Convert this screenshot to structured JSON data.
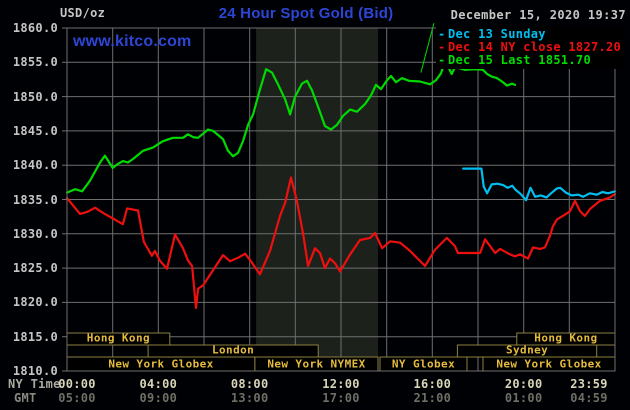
{
  "header": {
    "units_label": "USD/oz",
    "title": "24 Hour Spot Gold (Bid)",
    "datetime": "December 15, 2020 19:37",
    "watermark": "www.kitco.com"
  },
  "palette": {
    "background": "#000104",
    "plot_background": "#000000",
    "shaded_band": "#1c211b",
    "grid": "#6f6f6f",
    "title_blue": "#2d46d6",
    "axis_text": "#c6c6c6",
    "x_label_bright": "#d9d5b8",
    "x_label_dim": "#6f6f66",
    "axis_name_text": "#a9a9a1",
    "session_border": "#8c8040",
    "session_text": "#e5bb3e",
    "series_dec13": "#00bff0",
    "series_dec14": "#ee0f0f",
    "series_dec15": "#00da00"
  },
  "legend": [
    {
      "label": "Dec 13 Sunday",
      "color": "#00bff0"
    },
    {
      "label": "Dec 14 NY close 1827.20",
      "color": "#ee0f0f"
    },
    {
      "label": "Dec 15 Last 1851.70",
      "color": "#00da00"
    }
  ],
  "axes": {
    "x_axis_label_ny": "NY Time",
    "x_axis_label_gmt": "GMT"
  },
  "chart_data": {
    "type": "line",
    "title": "24 Hour Spot Gold (Bid)",
    "y_axis": {
      "label": "USD/oz",
      "min": 1810,
      "max": 1860,
      "tick_step": 5,
      "tick_labels": [
        "1860.0",
        "1855.0",
        "1850.0",
        "1845.0",
        "1840.0",
        "1835.0",
        "1830.0",
        "1825.0",
        "1820.0",
        "1815.0",
        "1810.0"
      ]
    },
    "x_axis": {
      "range_hours": [
        0,
        24
      ],
      "gridline_every_hours": 2,
      "tick_hours": [
        0,
        4,
        8,
        12,
        16,
        20,
        24
      ],
      "tick_labels_ny": [
        "00:00",
        "04:00",
        "08:00",
        "12:00",
        "16:00",
        "20:00",
        "23:59"
      ],
      "tick_labels_gmt": [
        "05:00",
        "09:00",
        "13:00",
        "17:00",
        "21:00",
        "01:00",
        "04:59"
      ]
    },
    "shaded_band_hours": [
      8.28,
      13.62
    ],
    "series": [
      {
        "name": "Dec 13 Sunday",
        "color": "#00bff0",
        "points": [
          [
            17.35,
            1839.5
          ],
          [
            18.15,
            1839.5
          ],
          [
            18.25,
            1836.9
          ],
          [
            18.4,
            1835.9
          ],
          [
            18.6,
            1837.2
          ],
          [
            18.85,
            1837.3
          ],
          [
            19.1,
            1837.1
          ],
          [
            19.3,
            1836.7
          ],
          [
            19.5,
            1837.0
          ],
          [
            19.65,
            1836.4
          ],
          [
            19.9,
            1835.7
          ],
          [
            20.1,
            1834.9
          ],
          [
            20.3,
            1836.7
          ],
          [
            20.5,
            1835.4
          ],
          [
            20.75,
            1835.6
          ],
          [
            21.0,
            1835.3
          ],
          [
            21.2,
            1835.9
          ],
          [
            21.45,
            1836.6
          ],
          [
            21.6,
            1836.7
          ],
          [
            21.85,
            1836.0
          ],
          [
            22.1,
            1835.6
          ],
          [
            22.4,
            1835.7
          ],
          [
            22.6,
            1835.4
          ],
          [
            22.9,
            1835.9
          ],
          [
            23.2,
            1835.7
          ],
          [
            23.45,
            1836.1
          ],
          [
            23.7,
            1835.9
          ],
          [
            24,
            1836.2
          ]
        ]
      },
      {
        "name": "Dec 14 NY close 1827.20",
        "color": "#ee0f0f",
        "points": [
          [
            0,
            1835.2
          ],
          [
            0.57,
            1832.9
          ],
          [
            0.9,
            1833.2
          ],
          [
            1.23,
            1833.8
          ],
          [
            1.6,
            1833.0
          ],
          [
            1.97,
            1832.3
          ],
          [
            2.45,
            1831.4
          ],
          [
            2.63,
            1833.7
          ],
          [
            3.11,
            1833.4
          ],
          [
            3.37,
            1828.8
          ],
          [
            3.72,
            1826.8
          ],
          [
            3.85,
            1827.5
          ],
          [
            4.07,
            1826.1
          ],
          [
            4.38,
            1824.9
          ],
          [
            4.73,
            1829.9
          ],
          [
            5.08,
            1827.9
          ],
          [
            5.3,
            1826.1
          ],
          [
            5.48,
            1825.3
          ],
          [
            5.65,
            1819.2
          ],
          [
            5.74,
            1822.0
          ],
          [
            5.96,
            1822.5
          ],
          [
            6.26,
            1824.0
          ],
          [
            6.83,
            1826.9
          ],
          [
            7.14,
            1826.0
          ],
          [
            7.49,
            1826.5
          ],
          [
            7.8,
            1827.1
          ],
          [
            8.1,
            1825.8
          ],
          [
            8.45,
            1824.1
          ],
          [
            8.89,
            1827.5
          ],
          [
            9.33,
            1832.6
          ],
          [
            9.55,
            1834.5
          ],
          [
            9.81,
            1838.2
          ],
          [
            10.07,
            1834.8
          ],
          [
            10.34,
            1830.0
          ],
          [
            10.56,
            1825.3
          ],
          [
            10.86,
            1827.9
          ],
          [
            11.08,
            1827.2
          ],
          [
            11.3,
            1825.0
          ],
          [
            11.52,
            1826.4
          ],
          [
            11.74,
            1825.7
          ],
          [
            11.96,
            1824.5
          ],
          [
            12.4,
            1827.0
          ],
          [
            12.83,
            1829.1
          ],
          [
            13.27,
            1829.4
          ],
          [
            13.49,
            1830.1
          ],
          [
            13.8,
            1827.9
          ],
          [
            14.15,
            1828.9
          ],
          [
            14.59,
            1828.7
          ],
          [
            15.02,
            1827.5
          ],
          [
            15.68,
            1825.3
          ],
          [
            16.12,
            1827.7
          ],
          [
            16.64,
            1829.4
          ],
          [
            16.99,
            1828.2
          ],
          [
            17.12,
            1827.2
          ],
          [
            18.09,
            1827.2
          ],
          [
            18.31,
            1829.2
          ],
          [
            18.75,
            1827.2
          ],
          [
            18.97,
            1827.8
          ],
          [
            19.4,
            1827.0
          ],
          [
            19.62,
            1826.7
          ],
          [
            19.84,
            1827.0
          ],
          [
            20.19,
            1826.4
          ],
          [
            20.41,
            1828.0
          ],
          [
            20.72,
            1827.8
          ],
          [
            20.93,
            1828.0
          ],
          [
            21.15,
            1829.7
          ],
          [
            21.28,
            1831.1
          ],
          [
            21.46,
            1832.1
          ],
          [
            21.81,
            1832.8
          ],
          [
            22.03,
            1833.3
          ],
          [
            22.25,
            1834.8
          ],
          [
            22.47,
            1833.3
          ],
          [
            22.68,
            1832.6
          ],
          [
            22.9,
            1833.6
          ],
          [
            23.34,
            1834.8
          ],
          [
            23.78,
            1835.3
          ],
          [
            24,
            1835.8
          ]
        ]
      },
      {
        "name": "Dec 15 Last 1851.70",
        "color": "#00da00",
        "points": [
          [
            0,
            1836.0
          ],
          [
            0.35,
            1836.5
          ],
          [
            0.66,
            1836.2
          ],
          [
            1.0,
            1837.7
          ],
          [
            1.45,
            1840.4
          ],
          [
            1.66,
            1841.4
          ],
          [
            2.0,
            1839.6
          ],
          [
            2.24,
            1840.2
          ],
          [
            2.45,
            1840.6
          ],
          [
            2.67,
            1840.4
          ],
          [
            2.89,
            1840.9
          ],
          [
            3.33,
            1842.1
          ],
          [
            3.77,
            1842.6
          ],
          [
            4.2,
            1843.5
          ],
          [
            4.64,
            1844.0
          ],
          [
            5.08,
            1844.0
          ],
          [
            5.3,
            1844.5
          ],
          [
            5.52,
            1844.1
          ],
          [
            5.74,
            1844.0
          ],
          [
            6.18,
            1845.2
          ],
          [
            6.4,
            1845.0
          ],
          [
            6.83,
            1843.8
          ],
          [
            7.05,
            1842.1
          ],
          [
            7.27,
            1841.3
          ],
          [
            7.49,
            1841.8
          ],
          [
            7.71,
            1843.5
          ],
          [
            7.93,
            1845.9
          ],
          [
            8.15,
            1847.4
          ],
          [
            8.45,
            1851.0
          ],
          [
            8.72,
            1854.0
          ],
          [
            8.98,
            1853.5
          ],
          [
            9.24,
            1851.8
          ],
          [
            9.55,
            1849.6
          ],
          [
            9.77,
            1847.4
          ],
          [
            9.99,
            1850.0
          ],
          [
            10.29,
            1851.9
          ],
          [
            10.51,
            1852.3
          ],
          [
            10.73,
            1850.9
          ],
          [
            10.99,
            1848.6
          ],
          [
            11.3,
            1845.7
          ],
          [
            11.56,
            1845.2
          ],
          [
            11.83,
            1845.9
          ],
          [
            12.09,
            1847.2
          ],
          [
            12.4,
            1848.1
          ],
          [
            12.7,
            1847.8
          ],
          [
            13.05,
            1848.9
          ],
          [
            13.32,
            1850.2
          ],
          [
            13.53,
            1851.7
          ],
          [
            13.75,
            1851.1
          ],
          [
            14.02,
            1852.4
          ],
          [
            14.19,
            1853.0
          ],
          [
            14.41,
            1852.1
          ],
          [
            14.67,
            1852.7
          ],
          [
            14.98,
            1852.3
          ],
          [
            15.46,
            1852.2
          ],
          [
            15.9,
            1851.8
          ],
          [
            16.16,
            1852.4
          ],
          [
            16.38,
            1853.4
          ],
          [
            16.56,
            1855.1
          ],
          [
            16.73,
            1854.1
          ],
          [
            16.85,
            1853.3
          ],
          [
            16.99,
            1854.3
          ],
          [
            17.43,
            1853.9
          ],
          [
            17.87,
            1854.0
          ],
          [
            18.22,
            1853.9
          ],
          [
            18.4,
            1853.3
          ],
          [
            18.61,
            1852.9
          ],
          [
            18.83,
            1852.7
          ],
          [
            19.05,
            1852.2
          ],
          [
            19.27,
            1851.6
          ],
          [
            19.49,
            1851.9
          ],
          [
            19.62,
            1851.7
          ]
        ]
      }
    ],
    "artifact_spike": {
      "color": "#00da00",
      "points": [
        [
          15.5,
          1853.5
        ],
        [
          16.07,
          1860.7
        ]
      ]
    },
    "sessions": [
      {
        "row": 1,
        "label": "Hong Kong",
        "start_h": 0,
        "end_h": 4.5
      },
      {
        "row": 1,
        "label": "Hong Kong",
        "start_h": 19.7,
        "end_h": 24
      },
      {
        "row": 2,
        "label": "London",
        "start_h": 3.55,
        "end_h": 11.0
      },
      {
        "row": 2,
        "label": "Sydney",
        "start_h": 17.1,
        "end_h": 23.2
      },
      {
        "row": 3,
        "label": "New York Globex",
        "start_h": 0,
        "end_h": 8.23
      },
      {
        "row": 3,
        "label": "New York NYMEX",
        "start_h": 8.23,
        "end_h": 13.62
      },
      {
        "row": 3,
        "label": "NY Globex",
        "start_h": 13.71,
        "end_h": 17.52
      },
      {
        "row": 3,
        "label": "New York Globex",
        "start_h": 18.22,
        "end_h": 24
      }
    ]
  }
}
